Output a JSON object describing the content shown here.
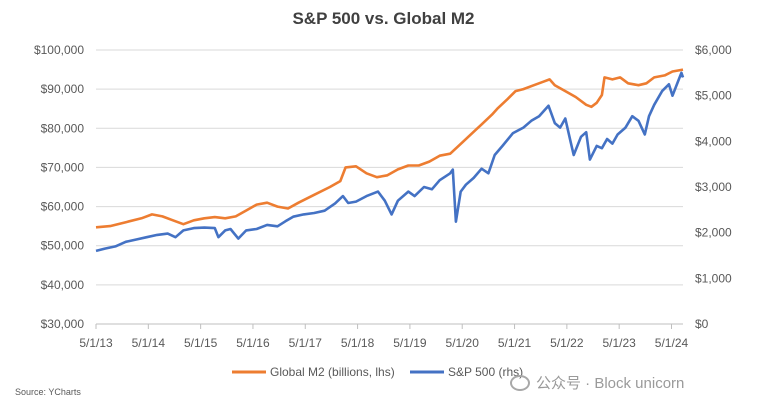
{
  "chart_data": {
    "type": "line",
    "title": "S&P 500 vs. Global M2",
    "x_tick_labels": [
      "5/1/13",
      "5/1/14",
      "5/1/15",
      "5/1/16",
      "5/1/17",
      "5/1/18",
      "5/1/19",
      "5/1/20",
      "5/1/21",
      "5/1/22",
      "5/1/23",
      "5/1/24"
    ],
    "x_range": [
      2013.33,
      2024.55
    ],
    "y_left": {
      "ticks": [
        "$30,000",
        "$40,000",
        "$50,000",
        "$60,000",
        "$70,000",
        "$80,000",
        "$90,000",
        "$100,000"
      ],
      "ylim": [
        30000,
        100000
      ]
    },
    "y_right": {
      "ticks": [
        "$0",
        "$1,000",
        "$2,000",
        "$3,000",
        "$4,000",
        "$5,000",
        "$6,000"
      ],
      "ylim": [
        0,
        6000
      ]
    },
    "gridlines": true,
    "series": [
      {
        "name": "Global M2 (billions, lhs)",
        "axis": "left",
        "color": "#ED7D31",
        "points": [
          [
            2013.33,
            54700
          ],
          [
            2013.6,
            55000
          ],
          [
            2013.9,
            56000
          ],
          [
            2014.2,
            57000
          ],
          [
            2014.4,
            58000
          ],
          [
            2014.6,
            57500
          ],
          [
            2014.8,
            56500
          ],
          [
            2015.0,
            55500
          ],
          [
            2015.2,
            56500
          ],
          [
            2015.4,
            57000
          ],
          [
            2015.6,
            57300
          ],
          [
            2015.8,
            57000
          ],
          [
            2016.0,
            57500
          ],
          [
            2016.2,
            59000
          ],
          [
            2016.4,
            60500
          ],
          [
            2016.6,
            61000
          ],
          [
            2016.8,
            60000
          ],
          [
            2017.0,
            59500
          ],
          [
            2017.2,
            61000
          ],
          [
            2017.5,
            63000
          ],
          [
            2017.8,
            65000
          ],
          [
            2018.0,
            66500
          ],
          [
            2018.1,
            70000
          ],
          [
            2018.3,
            70300
          ],
          [
            2018.5,
            68500
          ],
          [
            2018.7,
            67500
          ],
          [
            2018.9,
            68000
          ],
          [
            2019.1,
            69500
          ],
          [
            2019.3,
            70500
          ],
          [
            2019.5,
            70500
          ],
          [
            2019.7,
            71500
          ],
          [
            2019.9,
            73000
          ],
          [
            2020.1,
            73500
          ],
          [
            2020.3,
            76000
          ],
          [
            2020.5,
            78500
          ],
          [
            2020.7,
            81000
          ],
          [
            2020.9,
            83500
          ],
          [
            2021.0,
            85000
          ],
          [
            2021.2,
            87500
          ],
          [
            2021.35,
            89500
          ],
          [
            2021.5,
            90000
          ],
          [
            2021.7,
            91000
          ],
          [
            2021.9,
            92000
          ],
          [
            2022.0,
            92500
          ],
          [
            2022.1,
            91000
          ],
          [
            2022.3,
            89500
          ],
          [
            2022.5,
            88000
          ],
          [
            2022.7,
            86000
          ],
          [
            2022.8,
            85500
          ],
          [
            2022.9,
            86500
          ],
          [
            2023.0,
            88500
          ],
          [
            2023.05,
            93000
          ],
          [
            2023.2,
            92500
          ],
          [
            2023.35,
            93000
          ],
          [
            2023.5,
            91500
          ],
          [
            2023.7,
            91000
          ],
          [
            2023.85,
            91500
          ],
          [
            2024.0,
            93000
          ],
          [
            2024.2,
            93500
          ],
          [
            2024.35,
            94500
          ],
          [
            2024.55,
            95000
          ]
        ]
      },
      {
        "name": "S&P 500 (rhs)",
        "axis": "right",
        "color": "#4472C4",
        "points": [
          [
            2013.33,
            1600
          ],
          [
            2013.5,
            1650
          ],
          [
            2013.7,
            1700
          ],
          [
            2013.9,
            1800
          ],
          [
            2014.1,
            1850
          ],
          [
            2014.3,
            1900
          ],
          [
            2014.5,
            1950
          ],
          [
            2014.7,
            1980
          ],
          [
            2014.85,
            1900
          ],
          [
            2015.0,
            2050
          ],
          [
            2015.2,
            2100
          ],
          [
            2015.4,
            2110
          ],
          [
            2015.6,
            2100
          ],
          [
            2015.67,
            1900
          ],
          [
            2015.8,
            2050
          ],
          [
            2015.9,
            2080
          ],
          [
            2016.05,
            1870
          ],
          [
            2016.2,
            2050
          ],
          [
            2016.4,
            2080
          ],
          [
            2016.6,
            2170
          ],
          [
            2016.8,
            2140
          ],
          [
            2016.95,
            2250
          ],
          [
            2017.1,
            2350
          ],
          [
            2017.3,
            2400
          ],
          [
            2017.5,
            2430
          ],
          [
            2017.7,
            2480
          ],
          [
            2017.9,
            2640
          ],
          [
            2018.05,
            2800
          ],
          [
            2018.15,
            2650
          ],
          [
            2018.3,
            2680
          ],
          [
            2018.5,
            2800
          ],
          [
            2018.72,
            2900
          ],
          [
            2018.85,
            2700
          ],
          [
            2018.98,
            2400
          ],
          [
            2019.1,
            2700
          ],
          [
            2019.3,
            2900
          ],
          [
            2019.42,
            2800
          ],
          [
            2019.6,
            3000
          ],
          [
            2019.75,
            2950
          ],
          [
            2019.9,
            3150
          ],
          [
            2020.1,
            3300
          ],
          [
            2020.15,
            3380
          ],
          [
            2020.21,
            2240
          ],
          [
            2020.3,
            2900
          ],
          [
            2020.4,
            3050
          ],
          [
            2020.55,
            3200
          ],
          [
            2020.7,
            3400
          ],
          [
            2020.83,
            3300
          ],
          [
            2020.95,
            3700
          ],
          [
            2021.1,
            3900
          ],
          [
            2021.3,
            4180
          ],
          [
            2021.5,
            4300
          ],
          [
            2021.65,
            4450
          ],
          [
            2021.8,
            4550
          ],
          [
            2021.98,
            4780
          ],
          [
            2022.1,
            4400
          ],
          [
            2022.2,
            4300
          ],
          [
            2022.3,
            4500
          ],
          [
            2022.4,
            4000
          ],
          [
            2022.46,
            3700
          ],
          [
            2022.6,
            4100
          ],
          [
            2022.7,
            4200
          ],
          [
            2022.77,
            3600
          ],
          [
            2022.9,
            3900
          ],
          [
            2023.0,
            3850
          ],
          [
            2023.1,
            4050
          ],
          [
            2023.2,
            3950
          ],
          [
            2023.3,
            4150
          ],
          [
            2023.45,
            4300
          ],
          [
            2023.58,
            4550
          ],
          [
            2023.7,
            4450
          ],
          [
            2023.82,
            4150
          ],
          [
            2023.9,
            4550
          ],
          [
            2024.0,
            4800
          ],
          [
            2024.15,
            5100
          ],
          [
            2024.28,
            5250
          ],
          [
            2024.35,
            5000
          ],
          [
            2024.45,
            5300
          ],
          [
            2024.52,
            5500
          ],
          [
            2024.55,
            5400
          ]
        ]
      }
    ]
  },
  "legend": {
    "m2_label": "Global M2 (billions, lhs)",
    "spx_label": "S&P 500 (rhs)"
  },
  "source": "Source: YCharts",
  "watermark": "公众号 · Block unicorn"
}
